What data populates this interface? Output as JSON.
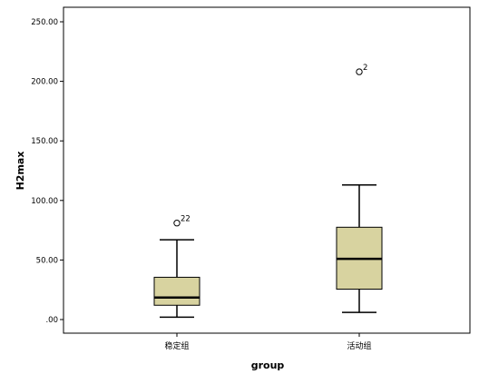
{
  "chart_data": {
    "type": "boxplot",
    "xlabel": "group",
    "ylabel": "H2max",
    "ylim": [
      0,
      250
    ],
    "yticks": [
      {
        "value": 0,
        "label": ".00"
      },
      {
        "value": 50,
        "label": "50.00"
      },
      {
        "value": 100,
        "label": "100.00"
      },
      {
        "value": 150,
        "label": "150.00"
      },
      {
        "value": 200,
        "label": "200.00"
      },
      {
        "value": 250,
        "label": "250.00"
      }
    ],
    "categories": [
      "稳定组",
      "活动组"
    ],
    "box_color": "#d8d3a0",
    "boxes": [
      {
        "category": "稳定组",
        "whisker_low": 2,
        "q1": 12,
        "median": 18.5,
        "q3": 35.5,
        "whisker_high": 67,
        "outliers": [
          {
            "value": 81,
            "label": "22"
          }
        ]
      },
      {
        "category": "活动组",
        "whisker_low": 6,
        "q1": 25.5,
        "median": 51,
        "q3": 77.5,
        "whisker_high": 113,
        "outliers": [
          {
            "value": 208,
            "label": "2"
          }
        ]
      }
    ],
    "grid": false,
    "legend": "none"
  }
}
